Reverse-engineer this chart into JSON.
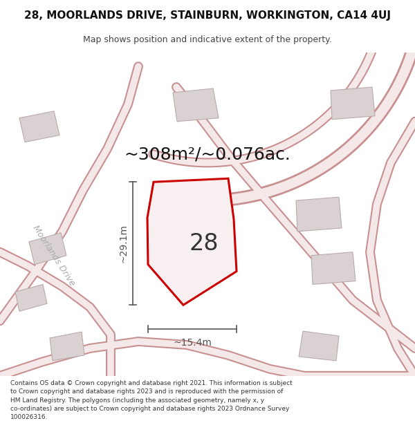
{
  "title": "28, MOORLANDS DRIVE, STAINBURN, WORKINGTON, CA14 4UJ",
  "subtitle": "Map shows position and indicative extent of the property.",
  "area_text": "~308m²/~0.076ac.",
  "property_number": "28",
  "dim_vertical": "~29.1m",
  "dim_horizontal": "~15.4m",
  "road_label": "Moorlands Drive",
  "footer": "Contains OS data © Crown copyright and database right 2021. This information is subject\nto Crown copyright and database rights 2023 and is reproduced with the permission of\nHM Land Registry. The polygons (including the associated geometry, namely x, y\nco-ordinates) are subject to Crown copyright and database rights 2023 Ordnance Survey\n100026316.",
  "map_bg": "#eeeae7",
  "road_outer_color": "#c89090",
  "road_inner_color": "#f5e8e8",
  "building_fill": "#dad2d2",
  "building_edge": "#baaaaa",
  "property_color": "#cc0000",
  "property_fill": "#f8f0f0",
  "dim_color": "#555555",
  "title_color": "#111111",
  "area_color": "#111111",
  "road_label_color": "#aaaaaa"
}
